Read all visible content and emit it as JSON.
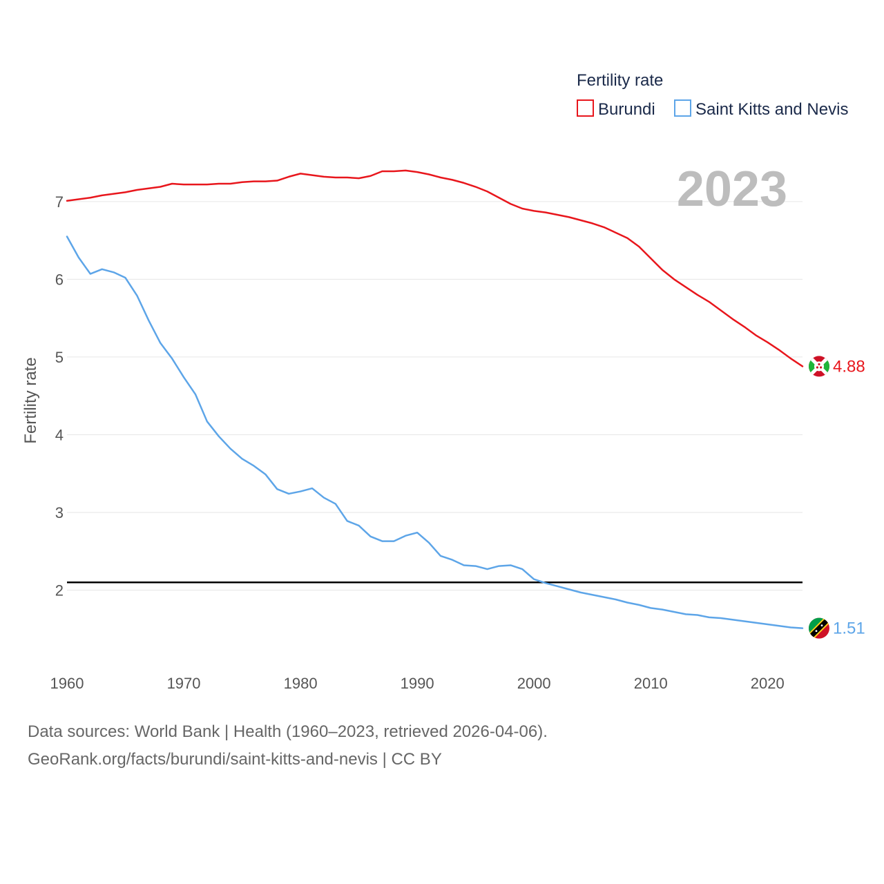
{
  "chart_data": {
    "type": "line",
    "title": "",
    "legend_title": "Fertility rate",
    "watermark_year": "2023",
    "ylabel": "Fertility rate",
    "xlabel": "",
    "xlim": [
      1960,
      2023
    ],
    "ylim": [
      1,
      7.55
    ],
    "x_ticks": [
      1960,
      1970,
      1980,
      1990,
      2000,
      2010,
      2020
    ],
    "y_ticks": [
      2,
      3,
      4,
      5,
      6,
      7
    ],
    "reference_line": 2.1,
    "legend_position": "top-right",
    "x": [
      1960,
      1961,
      1962,
      1963,
      1964,
      1965,
      1966,
      1967,
      1968,
      1969,
      1970,
      1971,
      1972,
      1973,
      1974,
      1975,
      1976,
      1977,
      1978,
      1979,
      1980,
      1981,
      1982,
      1983,
      1984,
      1985,
      1986,
      1987,
      1988,
      1989,
      1990,
      1991,
      1992,
      1993,
      1994,
      1995,
      1996,
      1997,
      1998,
      1999,
      2000,
      2001,
      2002,
      2003,
      2004,
      2005,
      2006,
      2007,
      2008,
      2009,
      2010,
      2011,
      2012,
      2013,
      2014,
      2015,
      2016,
      2017,
      2018,
      2019,
      2020,
      2021,
      2022,
      2023
    ],
    "series": [
      {
        "name": "Burundi",
        "color": "#e8161c",
        "end_label": "4.88",
        "values": [
          7.01,
          7.03,
          7.05,
          7.08,
          7.1,
          7.12,
          7.15,
          7.17,
          7.19,
          7.23,
          7.22,
          7.22,
          7.22,
          7.23,
          7.23,
          7.25,
          7.26,
          7.26,
          7.27,
          7.32,
          7.36,
          7.34,
          7.32,
          7.31,
          7.31,
          7.3,
          7.33,
          7.39,
          7.39,
          7.4,
          7.38,
          7.35,
          7.31,
          7.28,
          7.24,
          7.19,
          7.13,
          7.05,
          6.97,
          6.91,
          6.88,
          6.86,
          6.83,
          6.8,
          6.76,
          6.72,
          6.67,
          6.6,
          6.53,
          6.42,
          6.27,
          6.12,
          6.0,
          5.9,
          5.8,
          5.71,
          5.6,
          5.49,
          5.39,
          5.28,
          5.19,
          5.09,
          4.98,
          4.88
        ]
      },
      {
        "name": "Saint Kitts and Nevis",
        "color": "#5da5e8",
        "end_label": "1.51",
        "values": [
          6.55,
          6.28,
          6.07,
          6.13,
          6.09,
          6.02,
          5.79,
          5.47,
          5.18,
          4.98,
          4.74,
          4.52,
          4.17,
          3.98,
          3.82,
          3.69,
          3.6,
          3.49,
          3.3,
          3.24,
          3.27,
          3.31,
          3.19,
          3.11,
          2.89,
          2.83,
          2.69,
          2.63,
          2.63,
          2.7,
          2.74,
          2.61,
          2.44,
          2.39,
          2.32,
          2.31,
          2.27,
          2.31,
          2.32,
          2.27,
          2.14,
          2.09,
          2.05,
          2.01,
          1.97,
          1.94,
          1.91,
          1.88,
          1.84,
          1.81,
          1.77,
          1.75,
          1.72,
          1.69,
          1.68,
          1.65,
          1.64,
          1.62,
          1.6,
          1.58,
          1.56,
          1.54,
          1.52,
          1.51
        ]
      }
    ]
  },
  "footer": {
    "line1": "Data sources: World Bank | Health (1960–2023, retrieved 2026-04-06).",
    "line2": "GeoRank.org/facts/burundi/saint-kitts-and-nevis | CC BY"
  },
  "icons": {
    "burundi": "burundi-flag-icon",
    "skn": "saint-kitts-and-nevis-flag-icon"
  }
}
